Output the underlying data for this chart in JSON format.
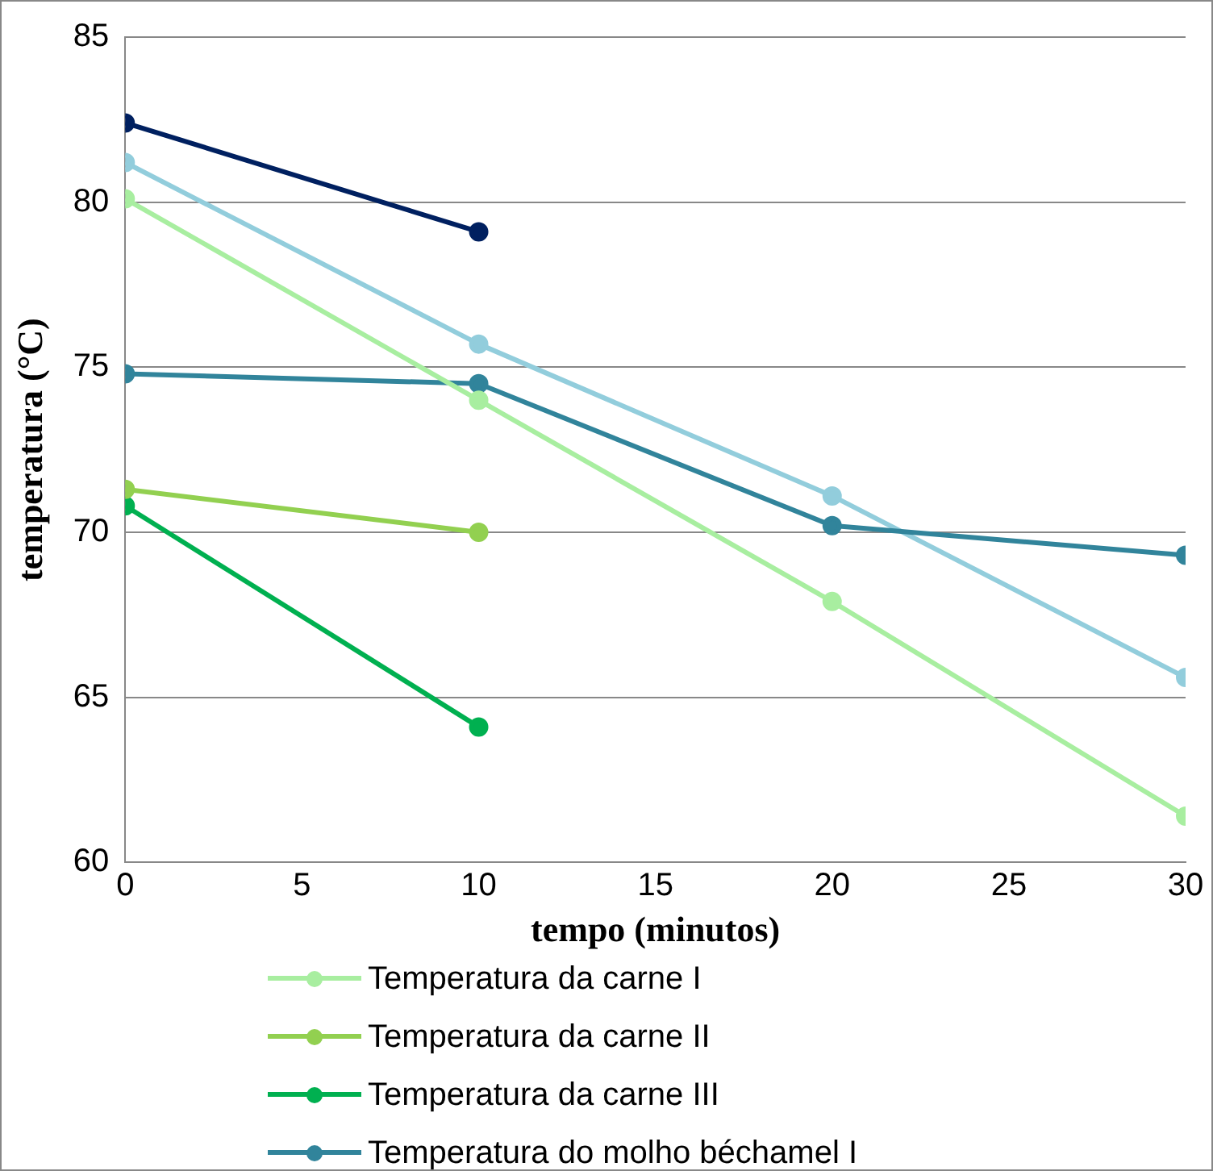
{
  "chart_data": {
    "type": "line",
    "xlabel": "tempo (minutos)",
    "ylabel": "temperatura (°C)",
    "x": [
      0,
      10,
      20,
      30
    ],
    "series": [
      {
        "name": "Temperatura da carne I",
        "color": "#a8eea0",
        "values": [
          80.1,
          74.0,
          67.9,
          61.4
        ]
      },
      {
        "name": "Temperatura da carne II",
        "color": "#92d050",
        "values": [
          71.3,
          70.0,
          null,
          null
        ]
      },
      {
        "name": "Temperatura da carne III",
        "color": "#00b050",
        "values": [
          70.8,
          64.1,
          null,
          null
        ]
      },
      {
        "name": "Temperatura do molho béchamel I",
        "color": "#31849b",
        "values": [
          74.8,
          74.5,
          70.2,
          69.3
        ]
      },
      {
        "color": "#002060",
        "values": [
          82.4,
          79.1,
          null,
          null
        ]
      },
      {
        "color": "#92cddc",
        "values": [
          81.2,
          75.7,
          71.1,
          65.6
        ]
      }
    ],
    "xlim": [
      0,
      30
    ],
    "xticks": [
      0,
      5,
      10,
      15,
      20,
      25,
      30
    ],
    "ylim": [
      60,
      85
    ],
    "yticks": [
      60,
      65,
      70,
      75,
      80,
      85
    ],
    "grid": "y",
    "legend": "bottom",
    "marker": "circle",
    "line_style": "solid"
  }
}
